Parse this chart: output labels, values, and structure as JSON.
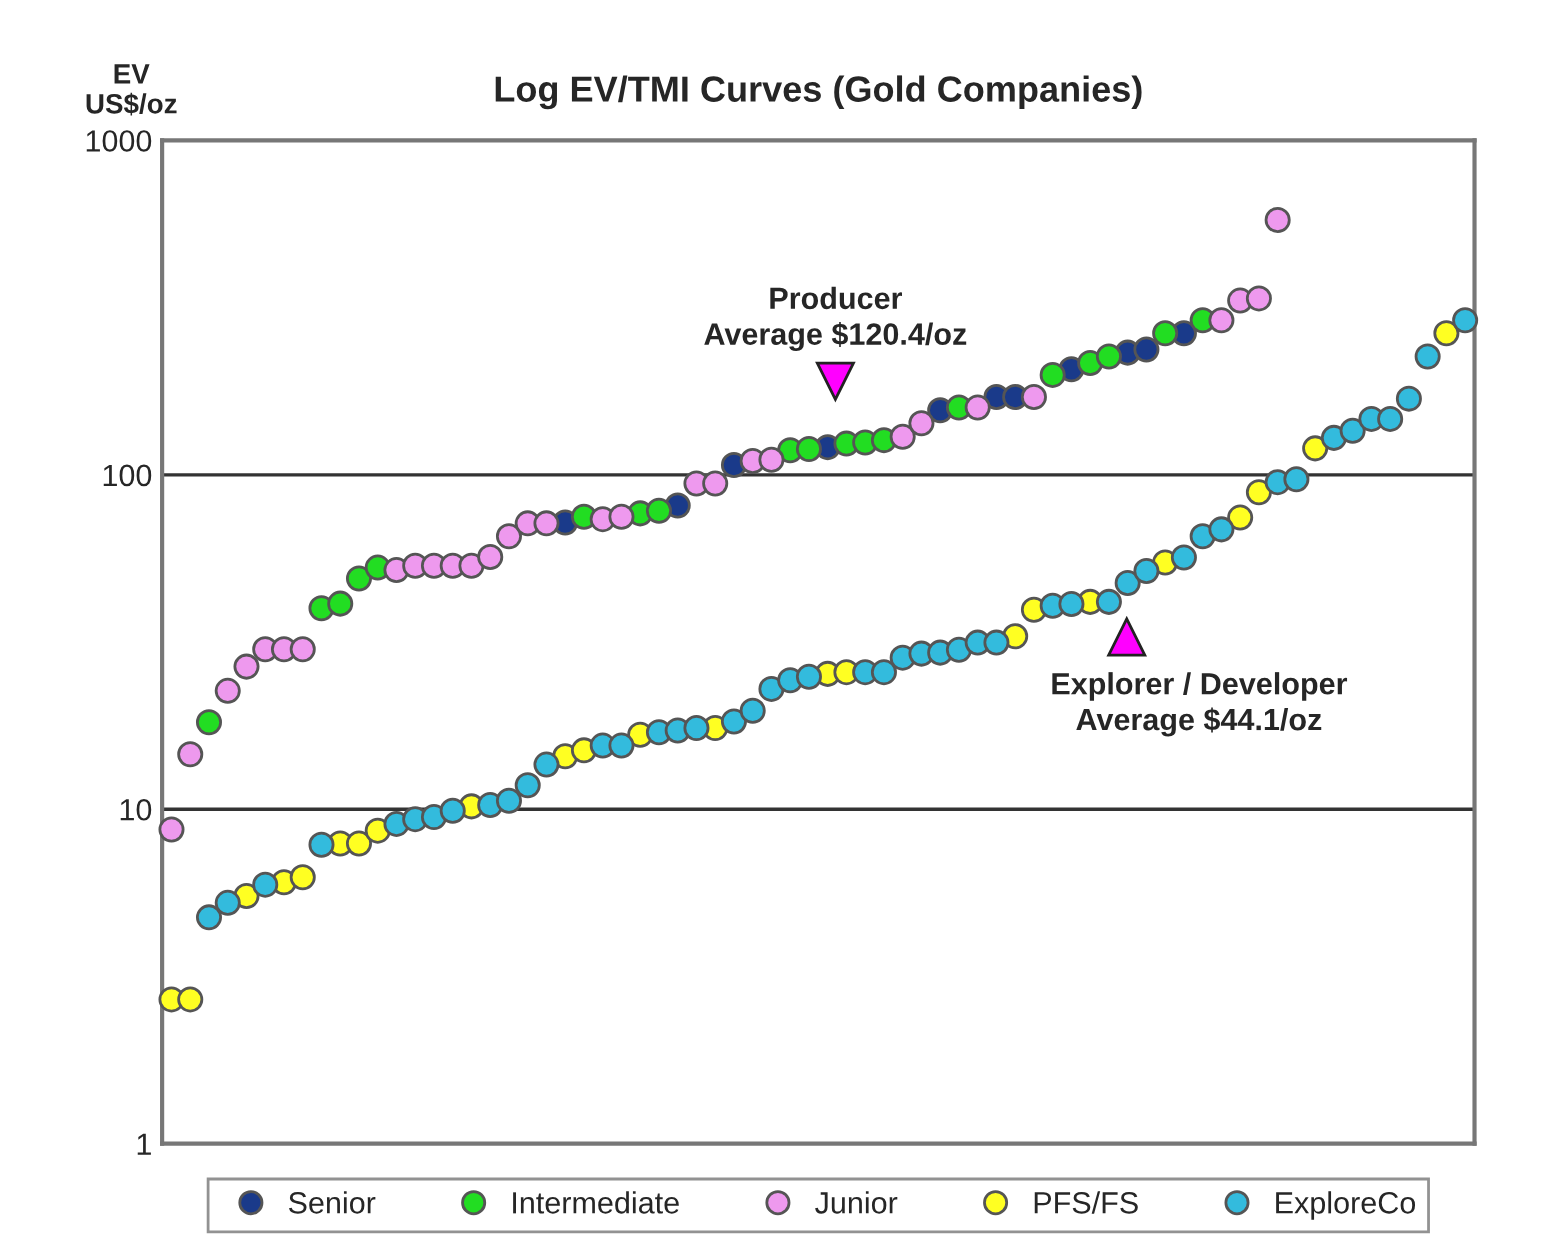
{
  "chart_data": {
    "type": "scatter",
    "title": "Log EV/TMI Curves (Gold Companies)",
    "ylabel": "EV\nUS$/oz",
    "categories": [
      null,
      null,
      null,
      null,
      null,
      null,
      null,
      null,
      null,
      null,
      null,
      null,
      null,
      null,
      null,
      null,
      null,
      null,
      null,
      null,
      null,
      null,
      null,
      null,
      null,
      null,
      null,
      null,
      null,
      null,
      null,
      null,
      null,
      null,
      null,
      null,
      null,
      null,
      null,
      null,
      null,
      null,
      null,
      null,
      null,
      null,
      null,
      null,
      null,
      null,
      null,
      null,
      null,
      null,
      null,
      null,
      null,
      null,
      null,
      null,
      null,
      null,
      null,
      null,
      null,
      null,
      null,
      null,
      null,
      null
    ],
    "series": [
      {
        "name": "Senior",
        "color": "#1a3a8a",
        "values": [
          null,
          null,
          null,
          null,
          null,
          null,
          null,
          null,
          null,
          null,
          null,
          null,
          null,
          null,
          null,
          null,
          null,
          null,
          null,
          null,
          null,
          72,
          null,
          null,
          null,
          null,
          null,
          81,
          null,
          null,
          107,
          null,
          null,
          null,
          null,
          121,
          null,
          null,
          null,
          null,
          null,
          156,
          null,
          null,
          171,
          171,
          null,
          null,
          207,
          null,
          null,
          232,
          237,
          null,
          265,
          null,
          null,
          null,
          null,
          null,
          null,
          null,
          null,
          null,
          null,
          null,
          null,
          null,
          null,
          null
        ]
      },
      {
        "name": "Intermediate",
        "color": "#22dd22",
        "values": [
          null,
          null,
          18.2,
          null,
          null,
          null,
          null,
          null,
          39.9,
          41.2,
          49,
          52.8,
          null,
          null,
          null,
          null,
          null,
          null,
          null,
          null,
          null,
          null,
          74.9,
          null,
          null,
          76.7,
          78.1,
          null,
          null,
          null,
          null,
          null,
          null,
          118.5,
          119.5,
          null,
          124,
          125,
          127,
          null,
          null,
          null,
          159,
          null,
          null,
          null,
          null,
          199,
          null,
          216,
          226,
          null,
          null,
          265,
          null,
          290,
          null,
          null,
          null,
          null,
          null,
          null,
          null,
          null,
          null,
          null,
          null,
          null,
          null,
          null
        ]
      },
      {
        "name": "Junior",
        "color": "#ee99ee",
        "values": [
          8.7,
          14.6,
          null,
          22.6,
          26.7,
          30.1,
          30.1,
          30.1,
          null,
          null,
          null,
          null,
          51.9,
          53.5,
          53.5,
          53.5,
          53.5,
          56.8,
          65.5,
          71.6,
          71.6,
          null,
          null,
          73.7,
          74.9,
          null,
          null,
          null,
          94.2,
          94.2,
          null,
          110,
          111,
          null,
          null,
          null,
          null,
          null,
          null,
          130,
          142.6,
          null,
          null,
          159,
          null,
          null,
          171,
          null,
          null,
          null,
          null,
          null,
          null,
          null,
          null,
          null,
          290,
          332,
          337,
          578,
          null,
          null,
          null,
          null,
          null,
          null,
          null,
          null,
          null,
          null
        ]
      },
      {
        "name": "PFS/FS",
        "color": "#ffff22",
        "values": [
          2.7,
          2.7,
          null,
          null,
          5.5,
          null,
          6.05,
          6.26,
          null,
          7.9,
          7.9,
          8.63,
          null,
          null,
          null,
          null,
          10.2,
          null,
          null,
          null,
          null,
          14.4,
          15,
          null,
          null,
          16.7,
          null,
          null,
          null,
          17.5,
          null,
          null,
          null,
          null,
          null,
          25.4,
          25.7,
          null,
          null,
          null,
          null,
          null,
          null,
          null,
          null,
          32.9,
          39.5,
          null,
          null,
          41.7,
          null,
          null,
          null,
          54.7,
          null,
          null,
          null,
          74.5,
          88.7,
          null,
          null,
          120,
          null,
          null,
          null,
          null,
          null,
          null,
          265,
          null
        ]
      },
      {
        "name": "ExploreCo",
        "color": "#33bbdd",
        "values": [
          null,
          null,
          4.75,
          5.25,
          null,
          5.95,
          null,
          null,
          7.83,
          null,
          null,
          null,
          9.04,
          9.34,
          9.48,
          9.9,
          null,
          10.3,
          10.6,
          11.8,
          13.6,
          null,
          null,
          15.5,
          15.5,
          null,
          17,
          17.2,
          17.5,
          null,
          18.3,
          19.7,
          22.9,
          24.3,
          24.9,
          null,
          null,
          25.7,
          25.7,
          28.4,
          29.2,
          29.4,
          30,
          31.5,
          31.5,
          null,
          null,
          40.6,
          41.1,
          null,
          41.7,
          47.5,
          51.6,
          null,
          56.6,
          65.5,
          68.7,
          null,
          null,
          95.1,
          97,
          null,
          129,
          135.5,
          147,
          147,
          169,
          226,
          null,
          290
        ]
      }
    ],
    "annotations": [
      "Producer\nAverage $120.4/oz",
      "Explorer / Developer\nAverage $44.1/oz"
    ],
    "log": true,
    "ylim": [
      1,
      1000
    ],
    "yticks": [
      1,
      10,
      100,
      1000
    ],
    "grid": "y",
    "legend": "bottom",
    "marker": "circle"
  }
}
